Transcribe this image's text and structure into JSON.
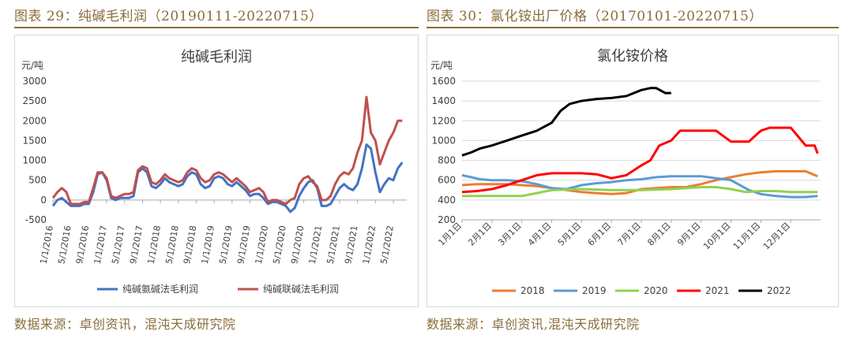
{
  "left": {
    "caption": "图表 29：纯碱毛利润（20190111-20220715）",
    "source": "数据来源：卓创资讯，混沌天成研究院",
    "chart_data": {
      "type": "line",
      "title": "纯碱毛利润",
      "unit": "元/吨",
      "ylim": [
        -500,
        3000
      ],
      "yticks": [
        -500,
        0,
        500,
        1000,
        1500,
        2000,
        2500,
        3000
      ],
      "xlim": [
        0,
        79
      ],
      "xticks": [
        {
          "i": 0,
          "label": "1/1/2016"
        },
        {
          "i": 4,
          "label": "5/1/2016"
        },
        {
          "i": 8,
          "label": "9/1/2016"
        },
        {
          "i": 12,
          "label": "1/1/2017"
        },
        {
          "i": 16,
          "label": "5/1/2017"
        },
        {
          "i": 20,
          "label": "9/1/2017"
        },
        {
          "i": 24,
          "label": "1/1/2018"
        },
        {
          "i": 28,
          "label": "5/1/2018"
        },
        {
          "i": 32,
          "label": "9/1/2018"
        },
        {
          "i": 36,
          "label": "1/1/2019"
        },
        {
          "i": 40,
          "label": "5/1/2019"
        },
        {
          "i": 44,
          "label": "9/1/2019"
        },
        {
          "i": 48,
          "label": "1/1/2020"
        },
        {
          "i": 52,
          "label": "5/1/2020"
        },
        {
          "i": 56,
          "label": "9/1/2020"
        },
        {
          "i": 60,
          "label": "1/1/2021"
        },
        {
          "i": 64,
          "label": "5/1/2021"
        },
        {
          "i": 68,
          "label": "9/1/2021"
        },
        {
          "i": 72,
          "label": "1/1/2022"
        },
        {
          "i": 76,
          "label": "5/1/2022"
        }
      ],
      "legend_position": "bottom",
      "series": [
        {
          "name": "纯碱氨碱法毛利润",
          "color": "#4472c4",
          "x": [
            0,
            1,
            2,
            3,
            4,
            5,
            6,
            7,
            8,
            9,
            10,
            11,
            12,
            13,
            14,
            15,
            16,
            17,
            18,
            19,
            20,
            21,
            22,
            23,
            24,
            25,
            26,
            27,
            28,
            29,
            30,
            31,
            32,
            33,
            34,
            35,
            36,
            37,
            38,
            39,
            40,
            41,
            42,
            43,
            44,
            45,
            46,
            47,
            48,
            49,
            50,
            51,
            52,
            53,
            54,
            55,
            56,
            57,
            58,
            59,
            60,
            61,
            62,
            63,
            64,
            65,
            66,
            67,
            68,
            69,
            70,
            71,
            72,
            73,
            74,
            75,
            76,
            77,
            78
          ],
          "y": [
            -150,
            0,
            50,
            -50,
            -150,
            -150,
            -150,
            -100,
            -100,
            200,
            650,
            700,
            500,
            50,
            0,
            50,
            50,
            50,
            100,
            700,
            800,
            700,
            350,
            300,
            400,
            550,
            450,
            400,
            350,
            400,
            600,
            700,
            650,
            400,
            300,
            350,
            550,
            600,
            550,
            400,
            350,
            450,
            350,
            250,
            100,
            150,
            150,
            50,
            -100,
            -50,
            -50,
            -100,
            -150,
            -300,
            -200,
            100,
            300,
            450,
            500,
            300,
            -150,
            -150,
            -100,
            100,
            300,
            400,
            300,
            250,
            400,
            800,
            1400,
            1300,
            700,
            200,
            400,
            550,
            500,
            800,
            950
          ]
        },
        {
          "name": "纯碱联碱法毛利润",
          "color": "#c0504d",
          "x": [
            0,
            1,
            2,
            3,
            4,
            5,
            6,
            7,
            8,
            9,
            10,
            11,
            12,
            13,
            14,
            15,
            16,
            17,
            18,
            19,
            20,
            21,
            22,
            23,
            24,
            25,
            26,
            27,
            28,
            29,
            30,
            31,
            32,
            33,
            34,
            35,
            36,
            37,
            38,
            39,
            40,
            41,
            42,
            43,
            44,
            45,
            46,
            47,
            48,
            49,
            50,
            51,
            52,
            53,
            54,
            55,
            56,
            57,
            58,
            59,
            60,
            61,
            62,
            63,
            64,
            65,
            66,
            67,
            68,
            69,
            70,
            71,
            72,
            73,
            74,
            75,
            76,
            77,
            78
          ],
          "y": [
            50,
            200,
            300,
            200,
            -100,
            -100,
            -100,
            -50,
            -50,
            300,
            700,
            700,
            550,
            100,
            50,
            100,
            150,
            150,
            200,
            750,
            850,
            800,
            450,
            400,
            500,
            650,
            550,
            500,
            450,
            500,
            700,
            800,
            750,
            550,
            450,
            500,
            650,
            700,
            650,
            550,
            450,
            550,
            450,
            350,
            200,
            250,
            300,
            200,
            -50,
            0,
            0,
            -50,
            -100,
            0,
            50,
            400,
            550,
            600,
            450,
            350,
            0,
            0,
            100,
            400,
            600,
            700,
            650,
            800,
            1200,
            1500,
            2600,
            1700,
            1500,
            900,
            1200,
            1500,
            1700,
            2000,
            2000
          ]
        }
      ]
    }
  },
  "right": {
    "caption": "图表 30：氯化铵出厂价格（20170101-20220715）",
    "source": "数据来源：卓创资讯,混沌天成研究院",
    "chart_data": {
      "type": "line",
      "title": "氯化铵价格",
      "unit": "元/吨",
      "ylim": [
        200,
        1600
      ],
      "yticks": [
        200,
        400,
        600,
        800,
        1000,
        1200,
        1400,
        1600
      ],
      "xlim": [
        1,
        13
      ],
      "xticks": [
        {
          "i": 1,
          "label": "1月1日"
        },
        {
          "i": 2,
          "label": "2月1日"
        },
        {
          "i": 3,
          "label": "3月1日"
        },
        {
          "i": 4,
          "label": "4月1日"
        },
        {
          "i": 5,
          "label": "5月1日"
        },
        {
          "i": 6,
          "label": "6月1日"
        },
        {
          "i": 7,
          "label": "7月1日"
        },
        {
          "i": 8,
          "label": "8月1日"
        },
        {
          "i": 9,
          "label": "9月1日"
        },
        {
          "i": 10,
          "label": "10月1日"
        },
        {
          "i": 11,
          "label": "11月1日"
        },
        {
          "i": 12,
          "label": "12月1日"
        }
      ],
      "legend_position": "bottom",
      "series": [
        {
          "name": "2018",
          "color": "#ed7d31",
          "x": [
            1,
            1.5,
            2,
            2.5,
            3,
            3.5,
            4,
            4.5,
            5,
            5.5,
            6,
            6.5,
            7,
            7.5,
            8,
            8.5,
            9,
            9.5,
            10,
            10.5,
            11,
            11.5,
            12,
            12.5,
            12.9
          ],
          "y": [
            550,
            560,
            560,
            560,
            550,
            540,
            520,
            500,
            480,
            470,
            460,
            470,
            510,
            520,
            530,
            530,
            560,
            600,
            630,
            660,
            680,
            690,
            690,
            690,
            640
          ]
        },
        {
          "name": "2019",
          "color": "#5b9bd5",
          "x": [
            1,
            1.3,
            1.6,
            2,
            2.5,
            3,
            3.5,
            4,
            4.5,
            5,
            5.5,
            6,
            6.5,
            7,
            7.5,
            8,
            8.5,
            9,
            9.5,
            10,
            10.3,
            10.6,
            11,
            11.5,
            12,
            12.5,
            12.9
          ],
          "y": [
            650,
            630,
            610,
            600,
            600,
            590,
            560,
            520,
            510,
            550,
            570,
            580,
            600,
            610,
            630,
            640,
            640,
            640,
            620,
            600,
            550,
            500,
            460,
            440,
            430,
            430,
            440
          ]
        },
        {
          "name": "2020",
          "color": "#92d050",
          "x": [
            1,
            2,
            3,
            3.5,
            4,
            5,
            6,
            7,
            8,
            8.5,
            9,
            9.5,
            10,
            10.5,
            11,
            11.5,
            12,
            12.5,
            12.9
          ],
          "y": [
            440,
            440,
            440,
            470,
            500,
            510,
            500,
            500,
            510,
            520,
            530,
            530,
            510,
            480,
            490,
            490,
            480,
            480,
            480
          ]
        },
        {
          "name": "2021",
          "color": "#ff0000",
          "x": [
            1,
            1.5,
            2,
            2.5,
            3,
            3.5,
            4,
            4.5,
            5,
            5.5,
            6,
            6.5,
            7,
            7.3,
            7.6,
            8,
            8.3,
            8.6,
            9,
            9.5,
            10,
            10.3,
            10.6,
            11,
            11.3,
            11.6,
            12,
            12.5,
            12.8,
            12.9
          ],
          "y": [
            480,
            490,
            510,
            550,
            600,
            650,
            670,
            670,
            670,
            660,
            620,
            650,
            750,
            800,
            950,
            1000,
            1100,
            1100,
            1100,
            1100,
            990,
            990,
            990,
            1100,
            1130,
            1130,
            1130,
            950,
            950,
            870
          ]
        },
        {
          "name": "2022",
          "color": "#000000",
          "x": [
            1,
            1.3,
            1.6,
            2,
            2.5,
            3,
            3.5,
            4,
            4.3,
            4.6,
            5,
            5.5,
            6,
            6.5,
            7,
            7.3,
            7.5,
            7.8,
            8
          ],
          "y": [
            850,
            880,
            920,
            950,
            1000,
            1050,
            1100,
            1180,
            1300,
            1370,
            1400,
            1420,
            1430,
            1450,
            1510,
            1530,
            1530,
            1480,
            1480
          ]
        }
      ]
    }
  }
}
